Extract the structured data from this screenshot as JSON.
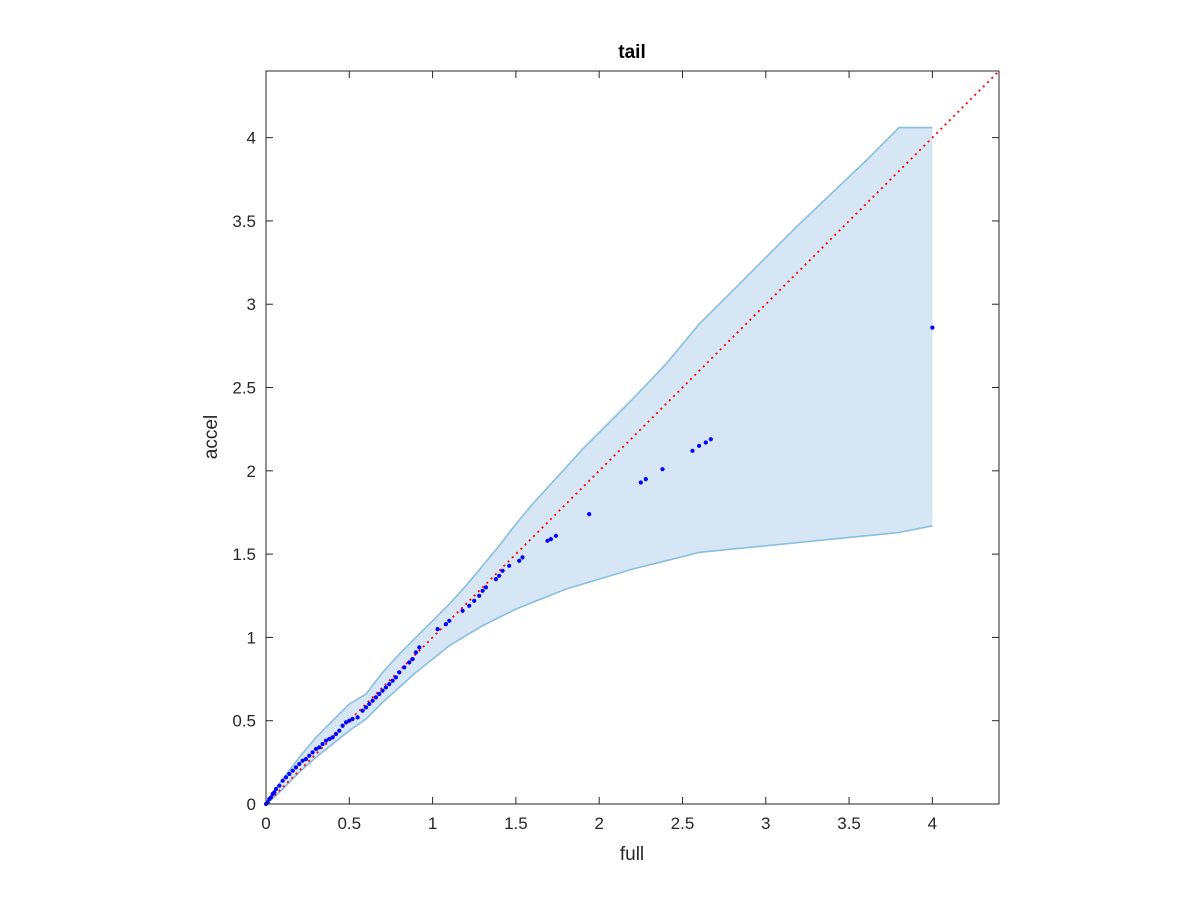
{
  "chart_data": {
    "type": "scatter",
    "title": "tail",
    "xlabel": "full",
    "ylabel": "accel",
    "xlim": [
      0,
      4.4
    ],
    "ylim": [
      0,
      4.4
    ],
    "xticks": [
      "0",
      "0.5",
      "1",
      "1.5",
      "2",
      "2.5",
      "3",
      "3.5",
      "4"
    ],
    "yticks": [
      "0",
      "0.5",
      "1",
      "1.5",
      "2",
      "2.5",
      "3",
      "3.5",
      "4"
    ],
    "grid": false,
    "colors": {
      "band_fill": "#d6e6f4",
      "band_edge": "#88bfe0",
      "points": "#0000ff",
      "reference_line": "#ff0000"
    },
    "reference_line": {
      "style": "dotted",
      "from": [
        0,
        0
      ],
      "to": [
        4.4,
        4.4
      ]
    },
    "band": {
      "x": [
        0,
        0.05,
        0.1,
        0.2,
        0.3,
        0.4,
        0.5,
        0.6,
        0.7,
        0.8,
        0.9,
        1.0,
        1.1,
        1.2,
        1.3,
        1.4,
        1.5,
        1.6,
        1.7,
        1.8,
        1.9,
        2.0,
        2.2,
        2.4,
        2.6,
        2.8,
        3.0,
        3.2,
        3.4,
        3.6,
        3.8,
        4.0
      ],
      "upper": [
        0,
        0.08,
        0.15,
        0.28,
        0.4,
        0.5,
        0.6,
        0.66,
        0.79,
        0.9,
        1.0,
        1.1,
        1.2,
        1.31,
        1.43,
        1.55,
        1.68,
        1.8,
        1.91,
        2.02,
        2.13,
        2.23,
        2.43,
        2.64,
        2.88,
        3.08,
        3.28,
        3.48,
        3.67,
        3.86,
        4.06,
        4.06
      ],
      "lower": [
        0,
        0.04,
        0.09,
        0.19,
        0.28,
        0.36,
        0.44,
        0.51,
        0.61,
        0.7,
        0.79,
        0.87,
        0.95,
        1.01,
        1.07,
        1.12,
        1.17,
        1.21,
        1.25,
        1.29,
        1.32,
        1.35,
        1.41,
        1.46,
        1.51,
        1.53,
        1.55,
        1.57,
        1.59,
        1.61,
        1.63,
        1.67
      ]
    },
    "series": [
      {
        "x": [
          0.0,
          0.01,
          0.02,
          0.03,
          0.04,
          0.05,
          0.06,
          0.08,
          0.1,
          0.12,
          0.14,
          0.16,
          0.18,
          0.2,
          0.22,
          0.24,
          0.26,
          0.28,
          0.3,
          0.32,
          0.34,
          0.36,
          0.38,
          0.4,
          0.42,
          0.44,
          0.46,
          0.48,
          0.5,
          0.52,
          0.55,
          0.58,
          0.6,
          0.62,
          0.64,
          0.66,
          0.68,
          0.7,
          0.72,
          0.74,
          0.76,
          0.78,
          0.8,
          0.83,
          0.86,
          0.88,
          0.9,
          0.92,
          1.03,
          1.08,
          1.1,
          1.18,
          1.22,
          1.25,
          1.28,
          1.3,
          1.32,
          1.38,
          1.4,
          1.42,
          1.46,
          1.52,
          1.54,
          1.69,
          1.71,
          1.74,
          1.94,
          2.25,
          2.28,
          2.38,
          2.56,
          2.6,
          2.64,
          2.67,
          4.0
        ],
        "y": [
          0.0,
          0.01,
          0.03,
          0.04,
          0.06,
          0.07,
          0.09,
          0.11,
          0.14,
          0.16,
          0.18,
          0.2,
          0.22,
          0.24,
          0.26,
          0.27,
          0.29,
          0.31,
          0.33,
          0.34,
          0.36,
          0.38,
          0.39,
          0.4,
          0.42,
          0.44,
          0.47,
          0.49,
          0.5,
          0.51,
          0.52,
          0.56,
          0.58,
          0.6,
          0.62,
          0.64,
          0.66,
          0.68,
          0.7,
          0.72,
          0.74,
          0.76,
          0.79,
          0.82,
          0.85,
          0.87,
          0.91,
          0.94,
          1.05,
          1.08,
          1.1,
          1.16,
          1.19,
          1.22,
          1.25,
          1.28,
          1.3,
          1.35,
          1.37,
          1.4,
          1.43,
          1.46,
          1.48,
          1.58,
          1.59,
          1.61,
          1.74,
          1.93,
          1.95,
          2.01,
          2.12,
          2.15,
          2.17,
          2.19,
          2.86
        ]
      }
    ]
  }
}
